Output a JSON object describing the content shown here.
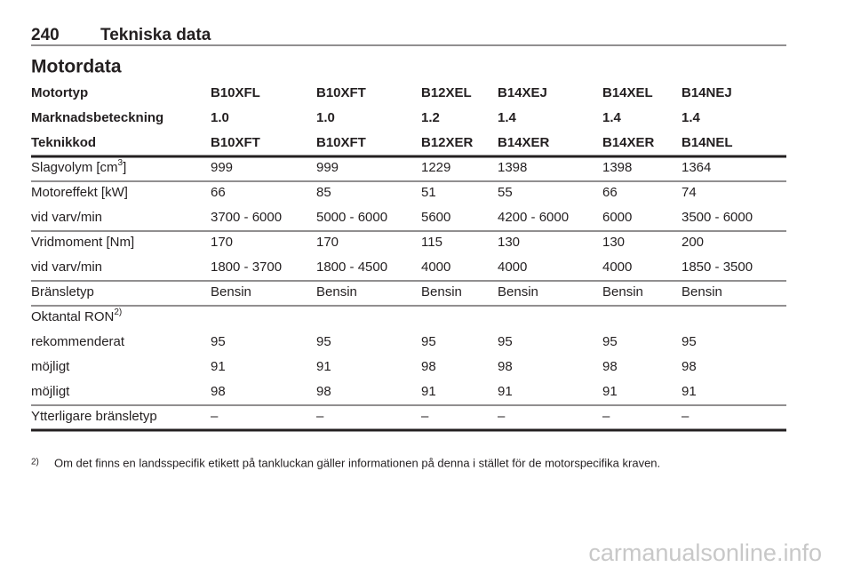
{
  "header": {
    "page_number": "240",
    "title": "Tekniska data"
  },
  "section_title": "Motordata",
  "table": {
    "groups": [
      [
        [
          "Motortyp",
          "B10XFL",
          "B10XFT",
          "B12XEL",
          "B14XEJ",
          "B14XEL",
          "B14NEJ"
        ],
        [
          "Marknadsbeteckning",
          "1.0",
          "1.0",
          "1.2",
          "1.4",
          "1.4",
          "1.4"
        ],
        [
          "Teknikkod",
          "B10XFT",
          "B10XFT",
          "B12XER",
          "B14XER",
          "B14XER",
          "B14NEL"
        ]
      ],
      [
        [
          {
            "text": "Slagvolym [cm",
            "sup": "3",
            "after": "]"
          },
          "999",
          "999",
          "1229",
          "1398",
          "1398",
          "1364"
        ]
      ],
      [
        [
          "Motoreffekt [kW]",
          "66",
          "85",
          "51",
          "55",
          "66",
          "74"
        ],
        [
          "vid varv/min",
          "3700 - 6000",
          "5000 - 6000",
          "5600",
          "4200 - 6000",
          "6000",
          "3500 - 6000"
        ]
      ],
      [
        [
          "Vridmoment [Nm]",
          "170",
          "170",
          "115",
          "130",
          "130",
          "200"
        ],
        [
          "vid varv/min",
          "1800 - 3700",
          "1800 - 4500",
          "4000",
          "4000",
          "4000",
          "1850 - 3500"
        ]
      ],
      [
        [
          "Bränsletyp",
          "Bensin",
          "Bensin",
          "Bensin",
          "Bensin",
          "Bensin",
          "Bensin"
        ]
      ],
      [
        [
          {
            "text": "Oktantal RON",
            "sup": "2)"
          }
        ],
        [
          "rekommenderat",
          "95",
          "95",
          "95",
          "95",
          "95",
          "95"
        ],
        [
          "möjligt",
          "91",
          "91",
          "98",
          "98",
          "98",
          "98"
        ],
        [
          "möjligt",
          "98",
          "98",
          "91",
          "91",
          "91",
          "91"
        ]
      ],
      [
        [
          "Ytterligare bränsletyp",
          "–",
          "–",
          "–",
          "–",
          "–",
          "–"
        ]
      ]
    ]
  },
  "footnote": {
    "marker": "2)",
    "text": "Om det finns en landsspecifik etikett på tankluckan gäller informationen på denna i stället för de motorspecifika kraven."
  },
  "watermark": "carmanualsonline.info"
}
